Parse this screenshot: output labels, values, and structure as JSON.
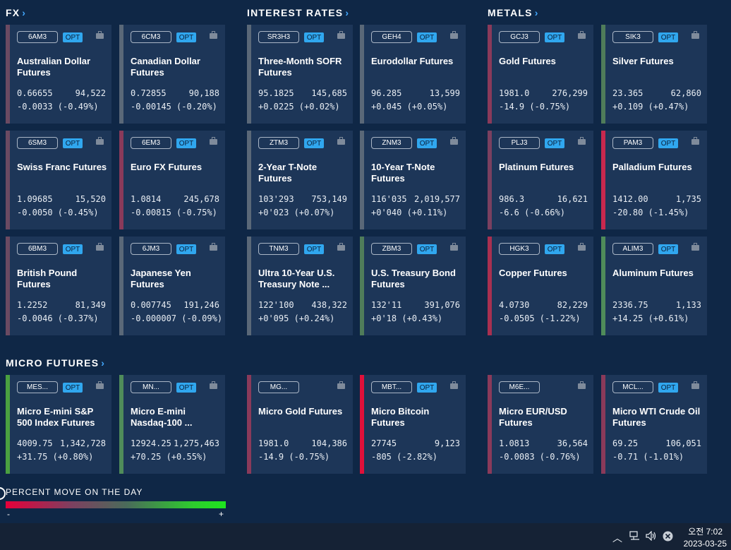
{
  "sections": {
    "fx": "FX",
    "interest_rates": "INTEREST RATES",
    "metals": "METALS",
    "micro_futures": "MICRO FUTURES"
  },
  "colors": {
    "down": "#8a3a5a",
    "down_strong": "#c8284e",
    "neutral": "#5a6878",
    "up": "#4f7c5a",
    "up_strong": "#2f9a3a",
    "opt_badge": "#30a7ef",
    "accent": "#43a9ff"
  },
  "cards": [
    {
      "symbol": "6AM3",
      "opt": "OPT",
      "name": "Australian Dollar Futures",
      "price": "0.66655",
      "volume": "94,522",
      "change": "-0.0033 (-0.49%)",
      "color": "#6b4a62"
    },
    {
      "symbol": "6CM3",
      "opt": "OPT",
      "name": "Canadian Dollar Futures",
      "price": "0.72855",
      "volume": "90,188",
      "change": "-0.00145 (-0.20%)",
      "color": "#5a6878"
    },
    {
      "symbol": "SR3H3",
      "opt": "OPT",
      "name": "Three-Month SOFR Futures",
      "price": "95.1825",
      "volume": "145,685",
      "change": "+0.0225 (+0.02%)",
      "color": "#5a6878"
    },
    {
      "symbol": "GEH4",
      "opt": "OPT",
      "name": "Eurodollar Futures",
      "price": "96.285",
      "volume": "13,599",
      "change": "+0.045 (+0.05%)",
      "color": "#5a6878"
    },
    {
      "symbol": "GCJ3",
      "opt": "OPT",
      "name": "Gold Futures",
      "price": "1981.0",
      "volume": "276,299",
      "change": "-14.9 (-0.75%)",
      "color": "#8a3a5a"
    },
    {
      "symbol": "SIK3",
      "opt": "OPT",
      "name": "Silver Futures",
      "price": "23.365",
      "volume": "62,860",
      "change": "+0.109 (+0.47%)",
      "color": "#4f7c5a"
    },
    {
      "symbol": "6SM3",
      "opt": "OPT",
      "name": "Swiss Franc Futures",
      "price": "1.09685",
      "volume": "15,520",
      "change": "-0.0050 (-0.45%)",
      "color": "#6b4a62"
    },
    {
      "symbol": "6EM3",
      "opt": "OPT",
      "name": "Euro FX Futures",
      "price": "1.0814",
      "volume": "245,678",
      "change": "-0.00815 (-0.75%)",
      "color": "#8a3a5a"
    },
    {
      "symbol": "ZTM3",
      "opt": "OPT",
      "name": "2-Year T-Note Futures",
      "price": "103'293",
      "volume": "753,149",
      "change": "+0'023 (+0.07%)",
      "color": "#5a6878"
    },
    {
      "symbol": "ZNM3",
      "opt": "OPT",
      "name": "10-Year T-Note Futures",
      "price": "116'035",
      "volume": "2,019,577",
      "change": "+0'040 (+0.11%)",
      "color": "#5a6878"
    },
    {
      "symbol": "PLJ3",
      "opt": "OPT",
      "name": "Platinum Futures",
      "price": "986.3",
      "volume": "16,621",
      "change": "-6.6 (-0.66%)",
      "color": "#7a4060"
    },
    {
      "symbol": "PAM3",
      "opt": "OPT",
      "name": "Palladium Futures",
      "price": "1412.00",
      "volume": "1,735",
      "change": "-20.80 (-1.45%)",
      "color": "#c8284e"
    },
    {
      "symbol": "6BM3",
      "opt": "OPT",
      "name": "British Pound Futures",
      "price": "1.2252",
      "volume": "81,349",
      "change": "-0.0046 (-0.37%)",
      "color": "#6b4a62"
    },
    {
      "symbol": "6JM3",
      "opt": "OPT",
      "name": "Japanese Yen Futures",
      "price": "0.007745",
      "volume": "191,246",
      "change": "-0.000007 (-0.09%)",
      "color": "#5a6878"
    },
    {
      "symbol": "TNM3",
      "opt": "OPT",
      "name": "Ultra 10-Year U.S. Treasury Note ...",
      "price": "122'100",
      "volume": "438,322",
      "change": "+0'095 (+0.24%)",
      "color": "#5a6878"
    },
    {
      "symbol": "ZBM3",
      "opt": "OPT",
      "name": "U.S. Treasury Bond Futures",
      "price": "132'11",
      "volume": "391,076",
      "change": "+0'18 (+0.43%)",
      "color": "#4f7c5a"
    },
    {
      "symbol": "HGK3",
      "opt": "OPT",
      "name": "Copper Futures",
      "price": "4.0730",
      "volume": "82,229",
      "change": "-0.0505 (-1.22%)",
      "color": "#a83050"
    },
    {
      "symbol": "ALIM3",
      "opt": "OPT",
      "name": "Aluminum Futures",
      "price": "2336.75",
      "volume": "1,133",
      "change": "+14.25 (+0.61%)",
      "color": "#4f8c5a"
    },
    {
      "symbol": "MES...",
      "opt": "OPT",
      "name": "Micro E-mini S&P 500 Index Futures",
      "price": "4009.75",
      "volume": "1,342,728",
      "change": "+31.75 (+0.80%)",
      "color": "#4aa040"
    },
    {
      "symbol": "MN...",
      "opt": "OPT",
      "name": "Micro E-mini Nasdaq-100 ...",
      "price": "12924.25",
      "volume": "1,275,463",
      "change": "+70.25 (+0.55%)",
      "color": "#4f8c5a"
    },
    {
      "symbol": "MG...",
      "opt": "",
      "name": "Micro Gold Futures",
      "price": "1981.0",
      "volume": "104,386",
      "change": "-14.9 (-0.75%)",
      "color": "#8a3a5a"
    },
    {
      "symbol": "MBT...",
      "opt": "OPT",
      "name": "Micro Bitcoin Futures",
      "price": "27745",
      "volume": "9,123",
      "change": "-805 (-2.82%)",
      "color": "#e0103a"
    },
    {
      "symbol": "M6E...",
      "opt": "",
      "name": "Micro EUR/USD Futures",
      "price": "1.0813",
      "volume": "36,564",
      "change": "-0.0083 (-0.76%)",
      "color": "#8a3a5a"
    },
    {
      "symbol": "MCL...",
      "opt": "OPT",
      "name": "Micro WTI Crude Oil Futures",
      "price": "69.25",
      "volume": "106,051",
      "change": "-0.71 (-1.01%)",
      "color": "#8a3a5a"
    }
  ],
  "legend": {
    "title": "PERCENT MOVE ON THE DAY",
    "min": "-",
    "max": "+"
  },
  "taskbar": {
    "time": "오전 7:02",
    "date": "2023-03-25",
    "up_arrow": "︿",
    "network_icon": "network-icon",
    "volume_icon": "volume-icon",
    "close_icon": "close-circle-icon"
  }
}
